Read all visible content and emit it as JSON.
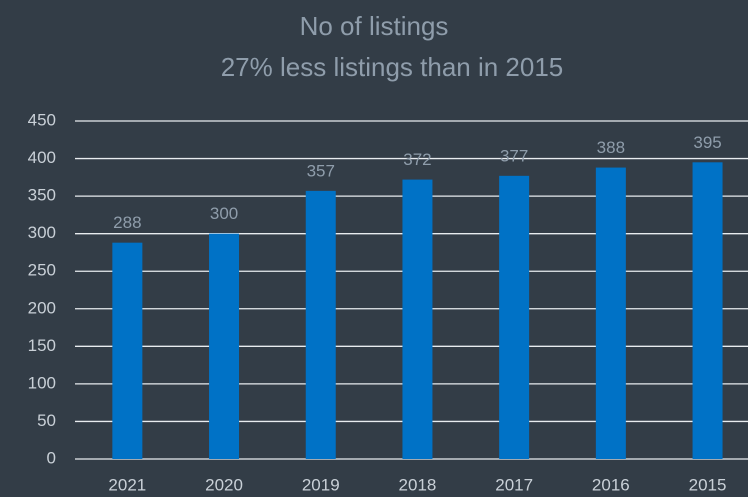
{
  "chart_data": {
    "type": "bar",
    "title": "No of listings",
    "subtitle": "27% less listings than in 2015",
    "categories": [
      "2021",
      "2020",
      "2019",
      "2018",
      "2017",
      "2016",
      "2015"
    ],
    "values": [
      288,
      300,
      357,
      372,
      377,
      388,
      395
    ],
    "color": "#0072c6",
    "ylim": [
      0,
      450
    ],
    "yticks": [
      0,
      50,
      100,
      150,
      200,
      250,
      300,
      350,
      400,
      450
    ],
    "grid": true
  }
}
